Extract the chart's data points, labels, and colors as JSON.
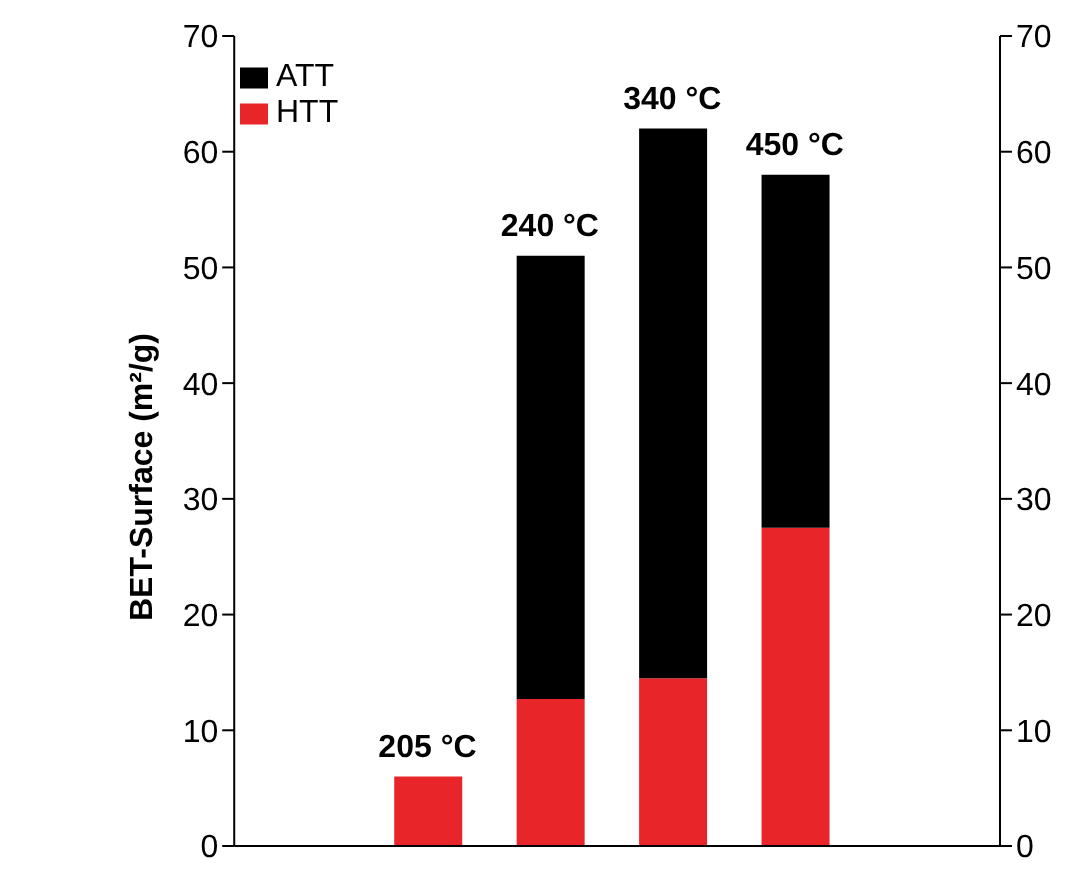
{
  "chart_data": {
    "type": "bar",
    "ylabel": "BET-Surface (m²/g)",
    "categories": [
      null,
      null,
      null,
      null
    ],
    "series": [
      {
        "name": "HTT",
        "color": "#e8262a",
        "values": [
          6,
          12.7,
          14.5,
          27.5
        ]
      },
      {
        "name": "ATT",
        "color": "#000000",
        "values": [
          null,
          38.3,
          47.5,
          30.5
        ]
      }
    ],
    "stacked": true,
    "ylim": [
      0,
      70
    ],
    "yticks": [
      0,
      10,
      20,
      30,
      40,
      50,
      60,
      70
    ],
    "y2lim": [
      0,
      70
    ],
    "y2ticks": [
      0,
      10,
      20,
      30,
      40,
      50,
      60,
      70
    ],
    "annotations": [
      "205 °C",
      "240 °C",
      "340 °C",
      "450 °C"
    ],
    "legend": "top left",
    "grid": false
  }
}
